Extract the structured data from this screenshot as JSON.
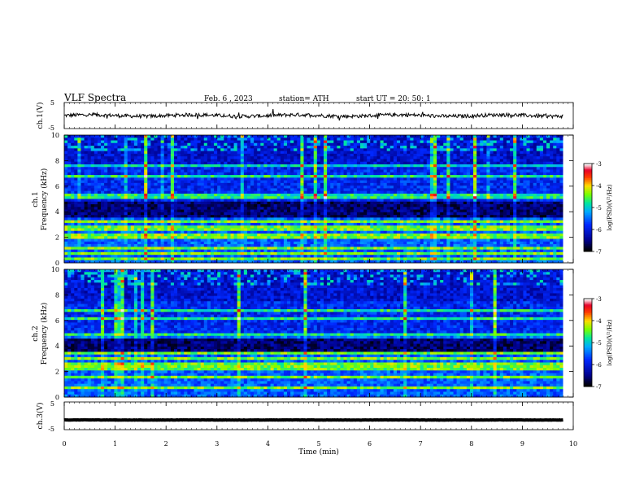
{
  "header": {
    "title": "VLF  Spectra",
    "date": "Feb. 6  , 2023",
    "station": "station= ATH",
    "start": "start  UT  =   20: 50: 1"
  },
  "chart_data": [
    {
      "type": "line",
      "name": "ch1-waveform",
      "ylabel": "ch.1(V)",
      "ylim": [
        -5,
        5
      ],
      "yticks": [
        "5",
        "-5"
      ],
      "xlim": [
        0,
        10
      ],
      "x_range": [
        0,
        9.8
      ],
      "baseline": 0,
      "noise_amplitude": 0.7,
      "color": "#000000"
    },
    {
      "type": "heatmap",
      "name": "ch1-spectrogram",
      "ylabel": "ch.1\nFrequency  (kHz)",
      "ylim": [
        0,
        10
      ],
      "yticks": [
        "0",
        "2",
        "4",
        "6",
        "8",
        "10"
      ],
      "xlim": [
        0,
        10
      ],
      "x_range": [
        0,
        9.8
      ],
      "colorbar": {
        "label": "log(PSD)(V²/Hz)",
        "range": [
          -7,
          -3
        ],
        "ticks": [
          "-3",
          "-4",
          "-5",
          "-6",
          "-7"
        ]
      },
      "bands_khz": [
        0.4,
        0.8,
        1.2,
        1.9,
        2.2,
        2.7,
        3.3,
        5.2,
        6.8,
        7.6
      ]
    },
    {
      "type": "heatmap",
      "name": "ch2-spectrogram",
      "ylabel": "ch.2\nFrequency  (kHz)",
      "ylim": [
        0,
        10
      ],
      "yticks": [
        "0",
        "2",
        "4",
        "6",
        "8",
        "10"
      ],
      "xlim": [
        0,
        10
      ],
      "x_range": [
        0,
        9.8
      ],
      "colorbar": {
        "label": "log(PSD)(V²/Hz)",
        "range": [
          -7,
          -3
        ],
        "ticks": [
          "-3",
          "-4",
          "-5",
          "-6",
          "-7"
        ]
      },
      "bands_khz": [
        0.7,
        1.5,
        2.1,
        2.5,
        3.0,
        3.5,
        4.8,
        6.1,
        6.8
      ]
    },
    {
      "type": "line",
      "name": "ch3-waveform",
      "ylabel": "ch.3(V)",
      "ylim": [
        -5,
        5
      ],
      "yticks": [
        "5",
        "-5"
      ],
      "xlim": [
        0,
        10
      ],
      "x_range": [
        0,
        9.8
      ],
      "baseline": -1.5,
      "noise_amplitude": 0.05,
      "color": "#000000"
    }
  ],
  "xaxis": {
    "label": "Time  (min)",
    "ticks": [
      "0",
      "1",
      "2",
      "3",
      "4",
      "5",
      "6",
      "7",
      "8",
      "9",
      "10"
    ]
  },
  "colors": {
    "background": "#ffffff",
    "axis": "#000000",
    "dark": "#000010"
  }
}
